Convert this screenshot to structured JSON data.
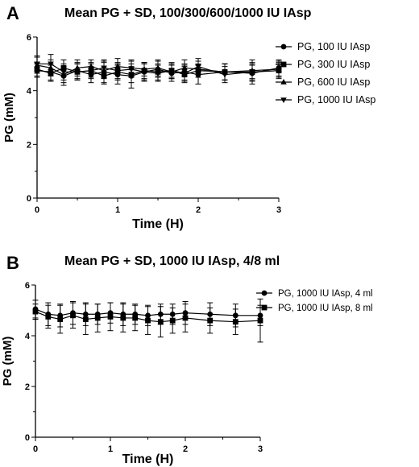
{
  "figure": {
    "panels": [
      {
        "letter": "A",
        "title": "Mean PG + SD, 100/300/600/1000 IU IAsp"
      },
      {
        "letter": "B",
        "title": "Mean PG + SD, 1000 IU IAsp, 4/8 ml"
      }
    ]
  },
  "chart_data": [
    {
      "type": "line",
      "panel": "A",
      "title": "Mean PG + SD, 100/300/600/1000 IU IAsp",
      "xlabel": "Time (H)",
      "ylabel": "PG (mM)",
      "xlim": [
        0,
        3
      ],
      "ylim": [
        0,
        6
      ],
      "xticks": [
        "0",
        "1",
        "2",
        "3"
      ],
      "yticks": [
        "0",
        "2",
        "4",
        "6"
      ],
      "legend_position": "right",
      "grid": false,
      "x": [
        0,
        0.17,
        0.33,
        0.5,
        0.67,
        0.83,
        1.0,
        1.17,
        1.33,
        1.5,
        1.67,
        1.83,
        2.0,
        2.33,
        2.67,
        3.0
      ],
      "series": [
        {
          "name": "PG, 100 IU IAsp",
          "marker": "circle",
          "values": [
            4.75,
            4.7,
            4.55,
            4.75,
            4.6,
            4.7,
            4.6,
            4.55,
            4.7,
            4.8,
            4.65,
            4.7,
            4.6,
            4.7,
            4.65,
            4.85
          ],
          "sd": [
            0.25,
            0.3,
            0.35,
            0.3,
            0.3,
            0.4,
            0.35,
            0.45,
            0.35,
            0.3,
            0.3,
            0.3,
            0.35,
            0.3,
            0.3,
            0.3
          ]
        },
        {
          "name": "PG, 300 IU IAsp",
          "marker": "square",
          "values": [
            4.8,
            4.65,
            4.85,
            4.7,
            4.75,
            4.55,
            4.7,
            4.6,
            4.75,
            4.7,
            4.75,
            4.6,
            4.75,
            4.7,
            4.7,
            4.75
          ],
          "sd": [
            0.25,
            0.3,
            0.3,
            0.3,
            0.25,
            0.3,
            0.3,
            0.3,
            0.3,
            0.3,
            0.25,
            0.3,
            0.25,
            0.3,
            0.3,
            0.25
          ]
        },
        {
          "name": "PG, 600 IU IAsp",
          "marker": "triangle-up",
          "values": [
            4.95,
            4.85,
            4.6,
            4.85,
            4.9,
            4.75,
            4.9,
            4.85,
            4.8,
            4.85,
            4.7,
            4.85,
            4.8,
            4.7,
            4.75,
            4.8
          ],
          "sd": [
            0.3,
            0.3,
            0.3,
            0.3,
            0.25,
            0.3,
            0.3,
            0.3,
            0.25,
            0.3,
            0.25,
            0.3,
            0.3,
            0.3,
            0.3,
            0.3
          ]
        },
        {
          "name": "PG, 1000 IU IAsp",
          "marker": "triangle-down",
          "values": [
            5.0,
            5.0,
            4.7,
            4.7,
            4.75,
            4.85,
            4.75,
            4.8,
            4.7,
            4.65,
            4.75,
            4.65,
            4.9,
            4.6,
            4.7,
            4.75
          ],
          "sd": [
            0.3,
            0.35,
            0.3,
            0.3,
            0.3,
            0.3,
            0.3,
            0.3,
            0.3,
            0.3,
            0.3,
            0.3,
            0.3,
            0.3,
            0.45,
            0.3
          ]
        }
      ]
    },
    {
      "type": "line",
      "panel": "B",
      "title": "Mean PG + SD, 1000 IU IAsp, 4/8 ml",
      "xlabel": "Time (H)",
      "ylabel": "PG (mM)",
      "xlim": [
        0,
        3
      ],
      "ylim": [
        0,
        6
      ],
      "xticks": [
        "0",
        "1",
        "2",
        "3"
      ],
      "yticks": [
        "0",
        "2",
        "4",
        "6"
      ],
      "legend_position": "right",
      "grid": false,
      "x": [
        0,
        0.17,
        0.33,
        0.5,
        0.67,
        0.83,
        1.0,
        1.17,
        1.33,
        1.5,
        1.67,
        1.83,
        2.0,
        2.33,
        2.67,
        3.0
      ],
      "series": [
        {
          "name": "PG, 1000 IU IAsp, 4 ml",
          "marker": "circle",
          "values": [
            5.05,
            4.85,
            4.8,
            4.9,
            4.85,
            4.85,
            4.9,
            4.85,
            4.85,
            4.8,
            4.85,
            4.85,
            4.9,
            4.85,
            4.8,
            4.8
          ],
          "sd": [
            0.35,
            0.45,
            0.45,
            0.45,
            0.45,
            0.4,
            0.4,
            0.45,
            0.4,
            0.4,
            0.4,
            0.4,
            0.45,
            0.45,
            0.45,
            0.4
          ]
        },
        {
          "name": "PG, 1000 IU IAsp, 8 ml",
          "marker": "square",
          "values": [
            4.95,
            4.75,
            4.65,
            4.8,
            4.65,
            4.7,
            4.75,
            4.7,
            4.7,
            4.6,
            4.55,
            4.6,
            4.7,
            4.6,
            4.55,
            4.6
          ],
          "sd": [
            0.3,
            0.45,
            0.55,
            0.5,
            0.6,
            0.55,
            0.55,
            0.55,
            0.5,
            0.55,
            0.6,
            0.5,
            0.55,
            0.5,
            0.5,
            0.85
          ]
        }
      ]
    }
  ]
}
